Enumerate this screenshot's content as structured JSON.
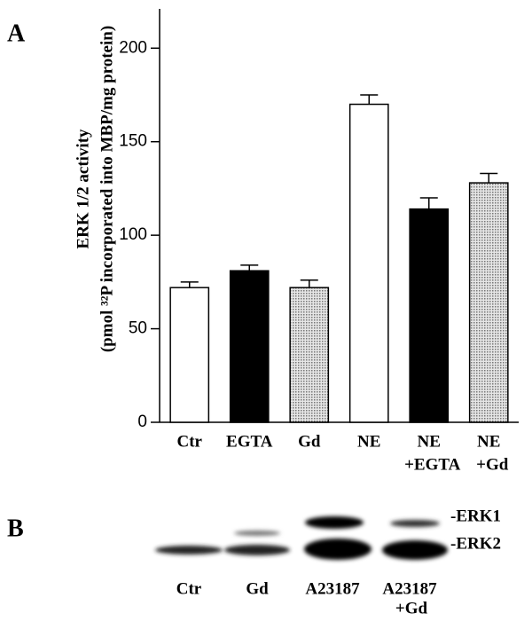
{
  "chart_data": {
    "type": "bar",
    "y_label": [
      "ERK 1/2 activity",
      "(pmol ³²P incorporated into MBP/mg protein)"
    ],
    "categories": [
      [
        "Ctr"
      ],
      [
        "EGTA"
      ],
      [
        "Gd"
      ],
      [
        "NE"
      ],
      [
        "NE",
        "+EGTA"
      ],
      [
        "NE",
        "+Gd"
      ]
    ],
    "values": [
      72,
      81,
      72,
      170,
      114,
      128
    ],
    "errors": [
      3,
      3,
      4,
      5,
      6,
      5
    ],
    "colors": [
      "#ffffff",
      "#000000",
      "#c4c4c4",
      "#ffffff",
      "#000000",
      "#c4c4c4"
    ],
    "ylim": [
      0,
      221
    ],
    "yticks": [
      0,
      50,
      100,
      150,
      200
    ]
  },
  "panel_labels": [
    "A",
    "B"
  ],
  "blot": {
    "bands": [
      "-ERK1",
      "-ERK2"
    ],
    "lanes": [
      [
        "Ctr"
      ],
      [
        "Gd"
      ],
      [
        "A23187"
      ],
      [
        "A23187",
        "+Gd"
      ]
    ]
  }
}
